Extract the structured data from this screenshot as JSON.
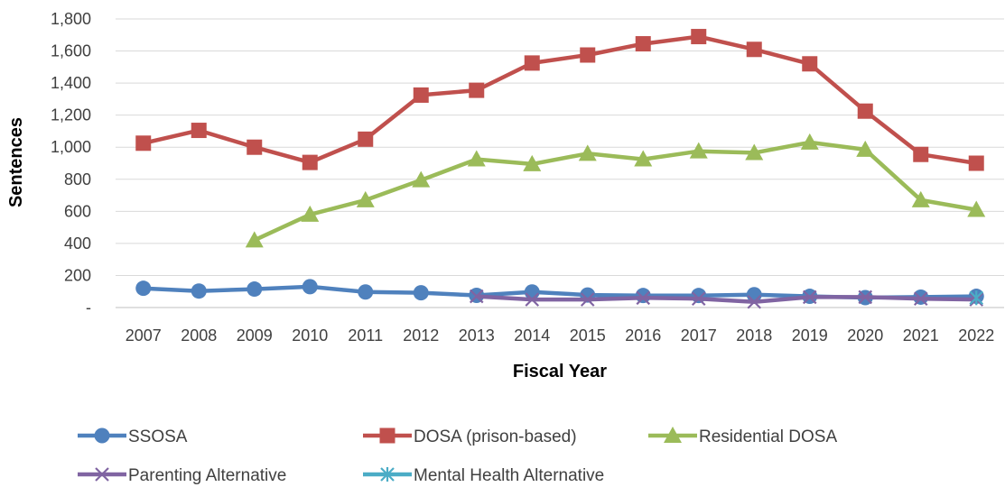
{
  "chart_data": {
    "type": "line",
    "xlabel": "Fiscal Year",
    "ylabel": "Sentences",
    "ylim": [
      0,
      1800
    ],
    "yticks": [
      0,
      200,
      400,
      600,
      800,
      1000,
      1200,
      1400,
      1600,
      1800
    ],
    "ytick_labels": [
      "-",
      "200",
      "400",
      "600",
      "800",
      "1,000",
      "1,200",
      "1,400",
      "1,600",
      "1,800"
    ],
    "categories": [
      "2007",
      "2008",
      "2009",
      "2010",
      "2011",
      "2012",
      "2013",
      "2014",
      "2015",
      "2016",
      "2017",
      "2018",
      "2019",
      "2020",
      "2021",
      "2022"
    ],
    "grid": "horizontal",
    "legend_position": "bottom",
    "series": [
      {
        "name": "SSOSA",
        "color": "#4F81BD",
        "marker": "circle",
        "values": [
          120,
          103,
          115,
          130,
          97,
          92,
          76,
          97,
          78,
          75,
          75,
          80,
          70,
          62,
          65,
          70
        ]
      },
      {
        "name": "DOSA (prison-based)",
        "color": "#C0504D",
        "marker": "square",
        "values": [
          1025,
          1105,
          1000,
          905,
          1050,
          1325,
          1355,
          1525,
          1575,
          1645,
          1690,
          1610,
          1520,
          1225,
          955,
          900
        ]
      },
      {
        "name": "Residential DOSA",
        "color": "#9BBB59",
        "marker": "triangle",
        "values": [
          null,
          null,
          420,
          580,
          670,
          795,
          925,
          895,
          960,
          925,
          975,
          965,
          1030,
          985,
          670,
          610
        ]
      },
      {
        "name": "Parenting Alternative",
        "color": "#8064A2",
        "marker": "x",
        "values": [
          null,
          null,
          null,
          null,
          null,
          null,
          70,
          50,
          50,
          60,
          55,
          35,
          65,
          65,
          55,
          50
        ]
      },
      {
        "name": "Mental Health Alternative",
        "color": "#4BACC6",
        "marker": "star",
        "values": [
          null,
          null,
          null,
          null,
          null,
          null,
          null,
          null,
          null,
          null,
          null,
          null,
          null,
          null,
          null,
          60
        ]
      }
    ]
  }
}
